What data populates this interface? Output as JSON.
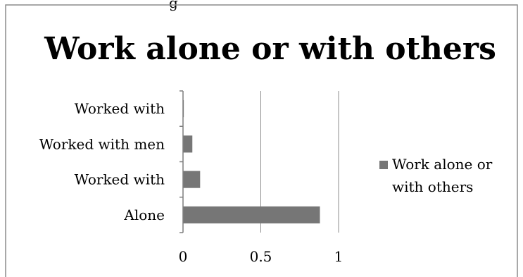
{
  "chart_data": {
    "type": "bar",
    "orientation": "horizontal",
    "title": "Work alone or with others",
    "categories": [
      "Alone",
      "Worked with",
      "Worked with men",
      "Worked with"
    ],
    "series": [
      {
        "name": "Work alone or with others",
        "values": [
          0.88,
          0.11,
          0.06,
          0.005
        ]
      }
    ],
    "xlim": [
      0,
      1
    ],
    "x_ticks": [
      "0",
      "0.5",
      "1"
    ],
    "grid": true,
    "legend_position": "right",
    "colors": {
      "bar": "#767676",
      "frame": "#8c8c8c",
      "grid": "#8c8c8c"
    },
    "top_caption_partial": "g"
  }
}
